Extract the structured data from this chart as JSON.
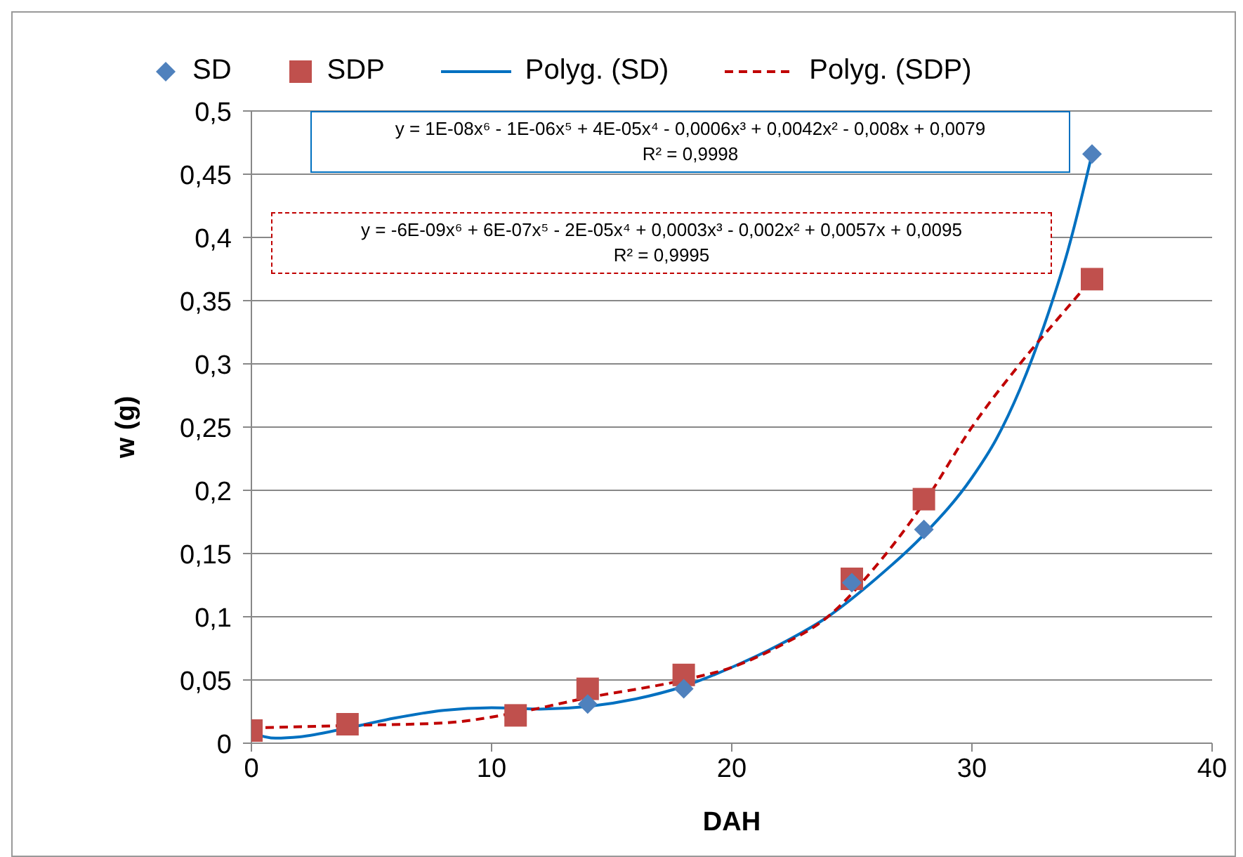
{
  "chart_data": {
    "type": "scatter",
    "xlabel": "DAH",
    "ylabel": "w (g)",
    "xlim": [
      0,
      40
    ],
    "xticks": [
      0,
      10,
      20,
      30,
      40
    ],
    "ylim": [
      0,
      0.5
    ],
    "yticks": [
      0,
      {
        "value": 0.05,
        "label": "0,05"
      },
      {
        "value": 0.1,
        "label": "0,1"
      },
      {
        "value": 0.15,
        "label": "0,15"
      },
      {
        "value": 0.2,
        "label": "0,2"
      },
      {
        "value": 0.25,
        "label": "0,25"
      },
      {
        "value": 0.3,
        "label": "0,3"
      },
      {
        "value": 0.35,
        "label": "0,35"
      },
      {
        "value": 0.4,
        "label": "0,4"
      },
      {
        "value": 0.45,
        "label": "0,45"
      },
      {
        "value": 0.5,
        "label": "0,5"
      }
    ],
    "grid": "y",
    "legend": "top",
    "series": [
      {
        "name": "SD",
        "marker": "diamond",
        "color": "#4f81bd",
        "x": [
          14,
          18,
          25,
          28,
          35
        ],
        "values": [
          0.031,
          0.043,
          0.127,
          0.169,
          0.466
        ]
      },
      {
        "name": "SDP",
        "marker": "square",
        "color": "#c0504d",
        "x": [
          0,
          4,
          11,
          14,
          18,
          25,
          28,
          35
        ],
        "values": [
          0.01,
          0.015,
          0.022,
          0.043,
          0.054,
          0.13,
          0.193,
          0.367
        ]
      },
      {
        "name": "Polyg. (SD)",
        "type": "line",
        "line_style": "solid",
        "color": "#0070c0",
        "x": [
          0,
          1,
          2,
          4,
          6,
          8,
          10,
          12,
          14,
          16,
          18,
          20,
          22,
          24,
          26,
          28,
          30,
          31,
          32,
          33,
          34,
          35
        ],
        "values": [
          0.008,
          0.004,
          0.005,
          0.012,
          0.02,
          0.026,
          0.028,
          0.027,
          0.029,
          0.035,
          0.045,
          0.06,
          0.078,
          0.1,
          0.13,
          0.165,
          0.21,
          0.24,
          0.28,
          0.33,
          0.39,
          0.466
        ]
      },
      {
        "name": "Polyg. (SDP)",
        "type": "line",
        "line_style": "dashed",
        "color": "#c00000",
        "x": [
          0,
          4,
          8,
          11,
          14,
          18,
          20,
          22,
          24,
          26,
          28,
          30,
          32,
          34,
          35
        ],
        "values": [
          0.012,
          0.014,
          0.016,
          0.024,
          0.036,
          0.05,
          0.06,
          0.077,
          0.1,
          0.14,
          0.19,
          0.25,
          0.3,
          0.345,
          0.367
        ]
      }
    ],
    "annotations": [
      "y = 1E-08x⁶ - 1E-06x⁵ + 4E-05x⁴ - 0,0006x³ + 0,0042x² - 0,008x + 0,0079",
      "R² = 0,9998",
      "y = -6E-09x⁶ + 6E-07x⁵ - 2E-05x⁴ + 0,0003x³ - 0,002x² + 0,0057x + 0,0095",
      "R² = 0,9995"
    ]
  }
}
